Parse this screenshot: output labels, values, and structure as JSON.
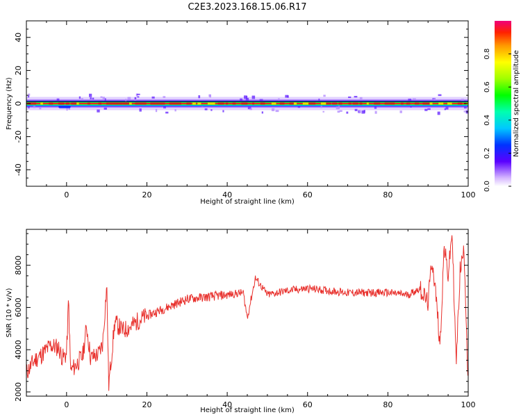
{
  "figure": {
    "title": "C2E3.2023.168.15.06.R17"
  },
  "chart_data": [
    {
      "type": "heatmap",
      "title": "C2E3.2023.168.15.06.R17",
      "xlabel": "Height of straight line (km)",
      "ylabel": "Frequency (Hz)",
      "xlim": [
        -10,
        100
      ],
      "ylim": [
        -50,
        50
      ],
      "xticks": [
        0,
        20,
        40,
        60,
        80,
        100
      ],
      "yticks": [
        -40,
        -20,
        0,
        20,
        40
      ],
      "grid": false,
      "colorbar": {
        "label": "Normalized spectral amplitude",
        "ticks": [
          0.0,
          0.2,
          0.4,
          0.6,
          0.8
        ],
        "range": [
          0,
          1
        ]
      },
      "band": {
        "center_hz": 0,
        "core_halfwidth_hz": 1.2,
        "halo_halfwidth_hz": 4,
        "peak_amplitude": 0.95,
        "notch_near_x": [
          -2,
          1
        ],
        "notch_center_hz": -2
      }
    },
    {
      "type": "line",
      "xlabel": "Height of straight line (km)",
      "ylabel": "SNR (10 * v/v)",
      "xlim": [
        -10,
        100
      ],
      "ylim": [
        1800,
        9700
      ],
      "xticks": [
        0,
        20,
        40,
        60,
        80,
        100
      ],
      "yticks": [
        2000,
        4000,
        6000,
        8000
      ],
      "grid": false,
      "series": [
        {
          "color": "#e8302c",
          "x": [
            -10,
            -8,
            -6,
            -4,
            -2,
            -1,
            0,
            0.5,
            1,
            2,
            4,
            5,
            6,
            8,
            9,
            10,
            10.5,
            12,
            14,
            16,
            18,
            20,
            25,
            30,
            35,
            40,
            44,
            45,
            47,
            50,
            55,
            60,
            65,
            70,
            75,
            80,
            85,
            88,
            90,
            91,
            92,
            93,
            94,
            95,
            96,
            97,
            98,
            99,
            100
          ],
          "y": [
            2900,
            3500,
            3800,
            4200,
            4100,
            3600,
            3800,
            6400,
            3000,
            3200,
            3700,
            5100,
            3600,
            3800,
            4300,
            7100,
            2300,
            5300,
            4900,
            5100,
            5400,
            5600,
            6000,
            6400,
            6500,
            6600,
            6700,
            5500,
            7400,
            6600,
            6800,
            6900,
            6800,
            6700,
            6700,
            6700,
            6600,
            6900,
            6200,
            8300,
            6500,
            4200,
            8900,
            7500,
            9600,
            3300,
            7800,
            8700,
            2300
          ]
        }
      ]
    }
  ]
}
